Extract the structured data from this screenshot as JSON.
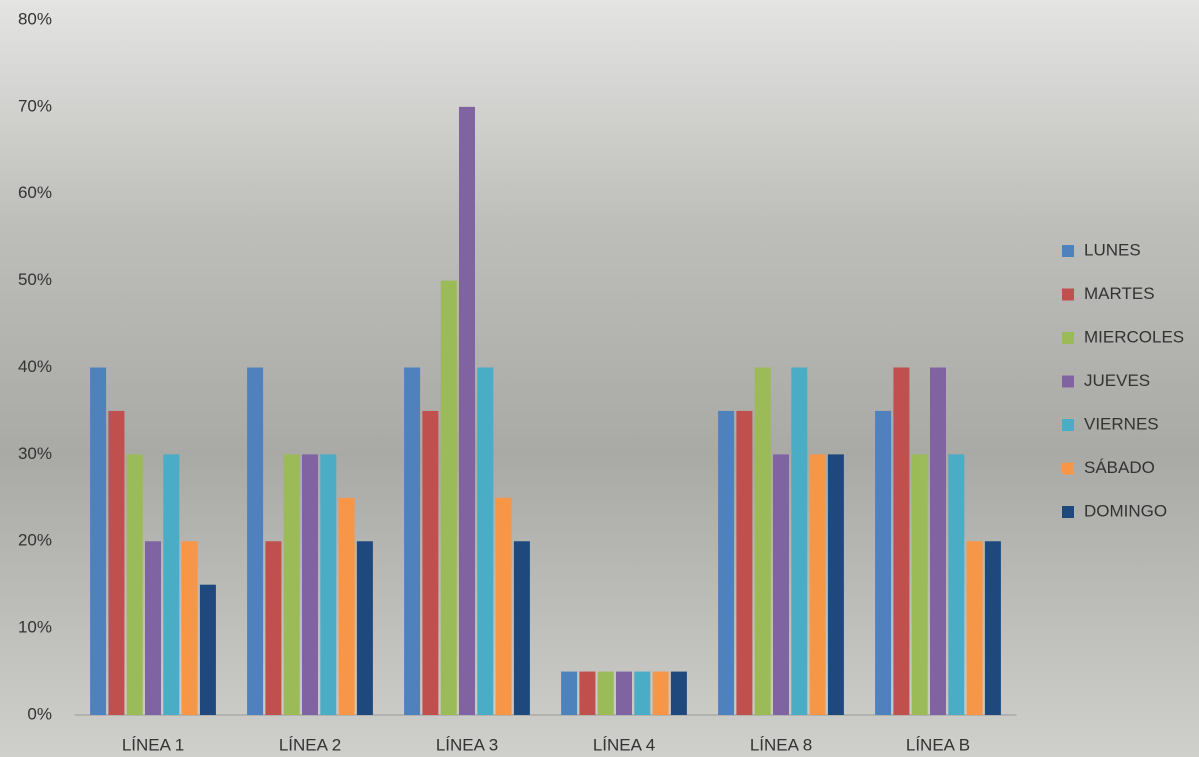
{
  "chart_data": {
    "type": "bar",
    "categories": [
      "LÍNEA 1",
      "LÍNEA 2",
      "LÍNEA 3",
      "LÍNEA 4",
      "LÍNEA 8",
      "LÍNEA B"
    ],
    "series": [
      {
        "name": "LUNES",
        "color": "#4f81bd",
        "values": [
          40,
          40,
          40,
          5,
          35,
          35
        ]
      },
      {
        "name": "MARTES",
        "color": "#c0504d",
        "values": [
          35,
          20,
          35,
          5,
          35,
          40
        ]
      },
      {
        "name": "MIERCOLES",
        "color": "#9bbb59",
        "values": [
          30,
          30,
          50,
          5,
          40,
          30
        ]
      },
      {
        "name": "JUEVES",
        "color": "#8064a2",
        "values": [
          20,
          30,
          70,
          5,
          30,
          40
        ]
      },
      {
        "name": "VIERNES",
        "color": "#4bacc6",
        "values": [
          30,
          30,
          40,
          5,
          40,
          30
        ]
      },
      {
        "name": "SÁBADO",
        "color": "#f79646",
        "values": [
          20,
          25,
          25,
          5,
          30,
          20
        ]
      },
      {
        "name": "DOMINGO",
        "color": "#1f497d",
        "values": [
          15,
          20,
          20,
          5,
          30,
          20
        ]
      }
    ],
    "ylim": [
      0,
      80
    ],
    "yticks": [
      {
        "value": 0,
        "label": "0%"
      },
      {
        "value": 10,
        "label": "10%"
      },
      {
        "value": 20,
        "label": "20%"
      },
      {
        "value": 30,
        "label": "30%"
      },
      {
        "value": 40,
        "label": "40%"
      },
      {
        "value": 50,
        "label": "50%"
      },
      {
        "value": 60,
        "label": "60%"
      },
      {
        "value": 70,
        "label": "70%"
      },
      {
        "value": 80,
        "label": "80%"
      }
    ],
    "grid": false,
    "legend": "right"
  }
}
